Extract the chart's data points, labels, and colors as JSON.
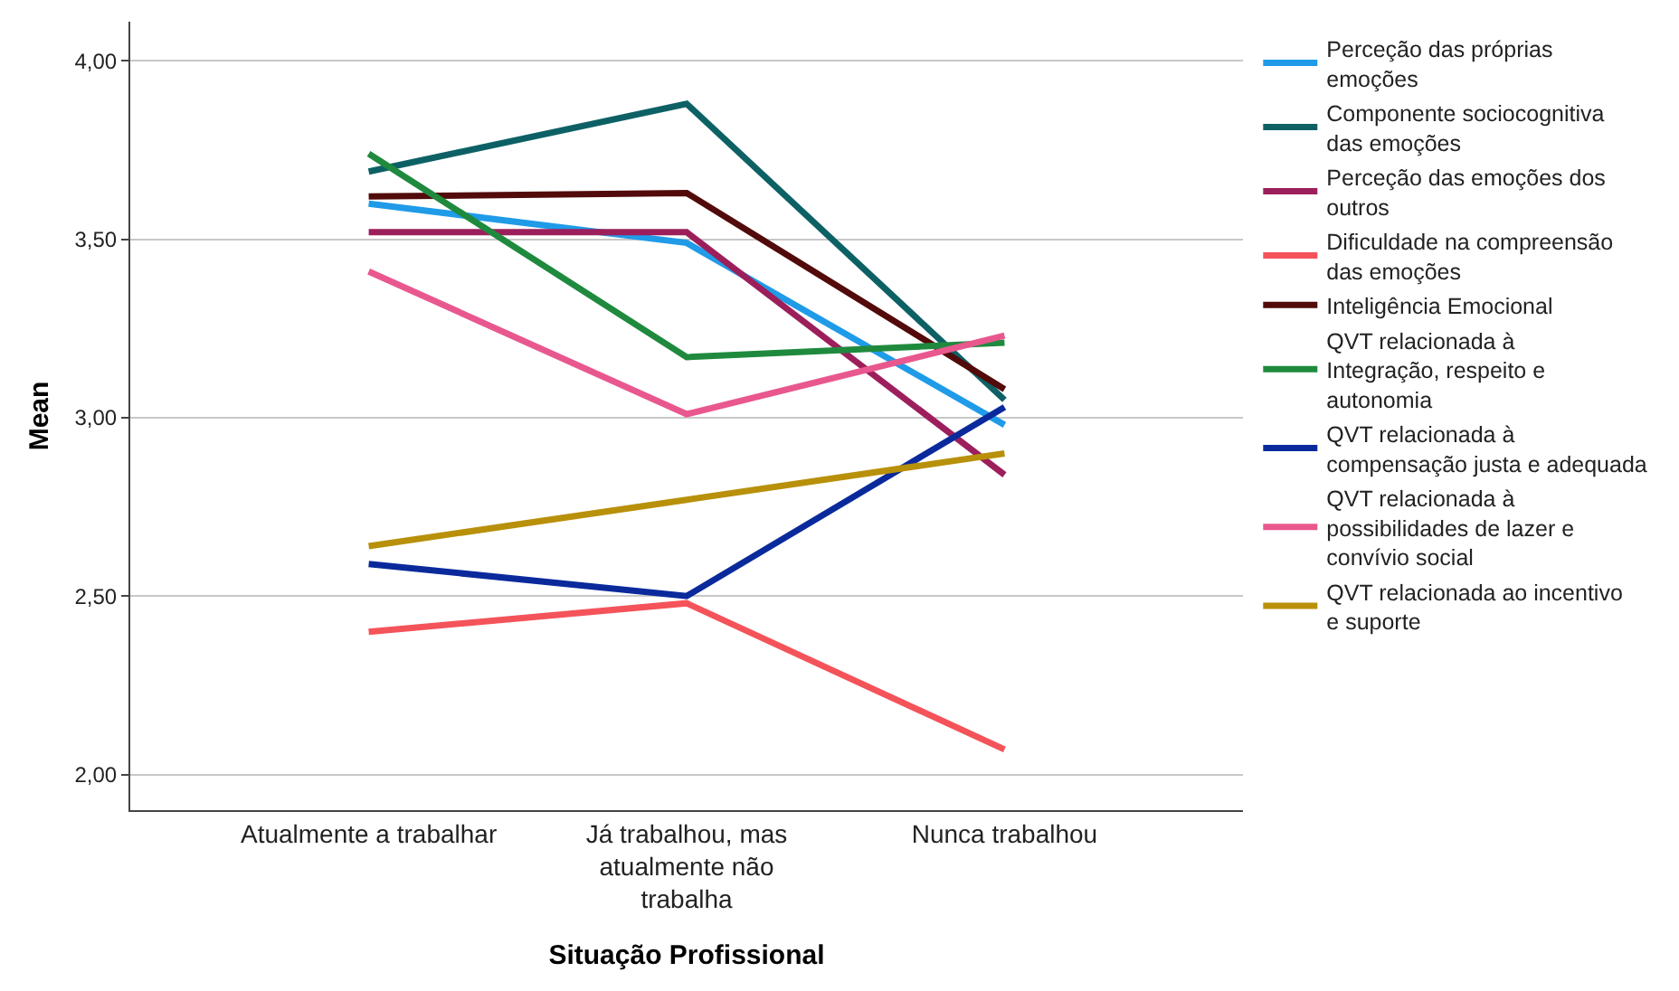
{
  "chart_data": {
    "type": "line",
    "xlabel": "Situação Profissional",
    "ylabel": "Mean",
    "categories": [
      "Atualmente a trabalhar",
      "Já trabalhou, mas atualmente não trabalha",
      "Nunca trabalhou"
    ],
    "series": [
      {
        "name": "Perceção das próprias emoções",
        "color": "#1f9be8",
        "values": [
          3.6,
          3.49,
          2.98
        ]
      },
      {
        "name": "Componente sociocognitiva das emoções",
        "color": "#0d6165",
        "values": [
          3.69,
          3.88,
          3.05
        ]
      },
      {
        "name": "Perceção das emoções dos outros",
        "color": "#9c1f5c",
        "values": [
          3.52,
          3.52,
          2.84
        ]
      },
      {
        "name": "Dificuldade na compreensão das emoções",
        "color": "#f4535a",
        "values": [
          2.4,
          2.48,
          2.07
        ]
      },
      {
        "name": "Inteligência Emocional",
        "color": "#520a0a",
        "values": [
          3.62,
          3.63,
          3.08
        ]
      },
      {
        "name": "QVT relacionada à Integração, respeito e autonomia",
        "color": "#1f8a3e",
        "values": [
          3.74,
          3.17,
          3.21
        ]
      },
      {
        "name": "QVT relacionada à compensação justa e adequada",
        "color": "#0a2a9c",
        "values": [
          2.59,
          2.5,
          3.03
        ]
      },
      {
        "name": "QVT relacionada à possibilidades de lazer e convívio social",
        "color": "#e8588e",
        "values": [
          3.41,
          3.01,
          3.23
        ]
      },
      {
        "name": "QVT relacionada ao incentivo e suporte",
        "color": "#b8900a",
        "values": [
          2.64,
          2.77,
          2.9
        ]
      }
    ],
    "ylim": [
      1.9,
      4.11
    ],
    "yticks": [
      {
        "value": 2,
        "label": "2,00"
      },
      {
        "value": 2.5,
        "label": "2,50"
      },
      {
        "value": 3,
        "label": "3,00"
      },
      {
        "value": 3.5,
        "label": "3,50"
      },
      {
        "value": 4,
        "label": "4,00"
      }
    ],
    "grid": "y",
    "legend": "right",
    "marker": "none",
    "line_style": "solid"
  }
}
